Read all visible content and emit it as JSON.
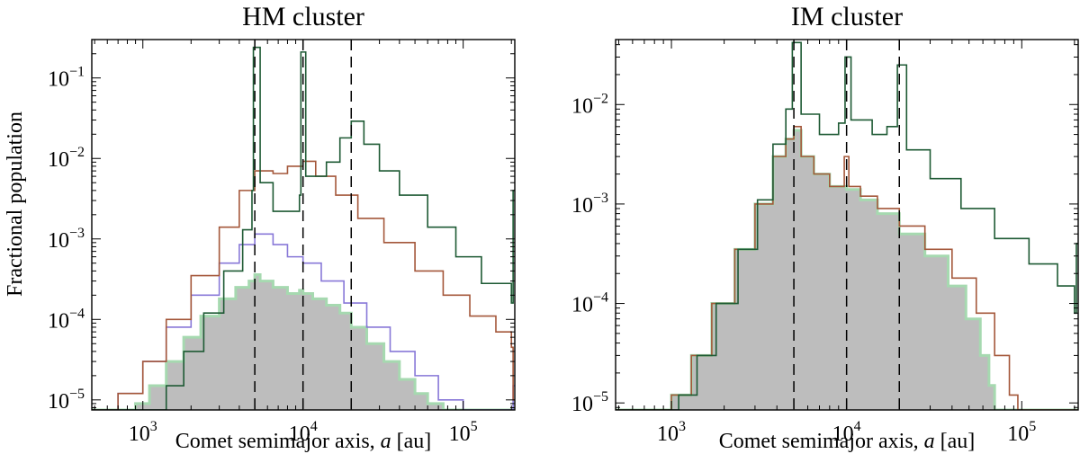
{
  "figure": {
    "ylabel": "Fractional population"
  },
  "chart_data": [
    {
      "type": "area",
      "title": "HM cluster",
      "xlabel": "Comet semimajor axis, a [au]",
      "xlabel_parts": [
        "Comet semimajor axis, ",
        "a",
        " [au]"
      ],
      "ylabel": "Fractional population",
      "xscale": "log",
      "yscale": "log",
      "xlim": [
        480,
        210000
      ],
      "ylim": [
        7.5e-06,
        0.3
      ],
      "xticks": [
        {
          "value": 1000,
          "base": "10",
          "exp": "3"
        },
        {
          "value": 10000,
          "base": "10",
          "exp": "4"
        },
        {
          "value": 100000,
          "base": "10",
          "exp": "5"
        }
      ],
      "yticks": [
        {
          "value": 1e-05,
          "base": "10",
          "exp": "−5"
        },
        {
          "value": 0.0001,
          "base": "10",
          "exp": "−4"
        },
        {
          "value": 0.001,
          "base": "10",
          "exp": "−3"
        },
        {
          "value": 0.01,
          "base": "10",
          "exp": "−2"
        },
        {
          "value": 0.1,
          "base": "10",
          "exp": "−1"
        }
      ],
      "vlines": [
        5000,
        10000,
        20000
      ],
      "series": [
        {
          "style": "filled",
          "color": "#bdbdbd",
          "edge": "#a6d9b0",
          "points": [
            [
              480,
              7.5e-06
            ],
            [
              700,
              7.5e-06
            ],
            [
              900,
              9e-06
            ],
            [
              1100,
              1.5e-05
            ],
            [
              1400,
              3e-05
            ],
            [
              1800,
              6e-05
            ],
            [
              2300,
              0.00011
            ],
            [
              3000,
              0.00018
            ],
            [
              3800,
              0.00025
            ],
            [
              4600,
              0.0003
            ],
            [
              5000,
              0.00036
            ],
            [
              5400,
              0.0003
            ],
            [
              6500,
              0.00025
            ],
            [
              8000,
              0.00021
            ],
            [
              9500,
              0.00023
            ],
            [
              10000,
              0.00021
            ],
            [
              11500,
              0.00018
            ],
            [
              14000,
              0.00015
            ],
            [
              17000,
              0.00012
            ],
            [
              20000,
              8e-05
            ],
            [
              25000,
              5e-05
            ],
            [
              32000,
              3e-05
            ],
            [
              40000,
              1.8e-05
            ],
            [
              50000,
              1.2e-05
            ],
            [
              60000,
              9e-06
            ],
            [
              75000,
              7.5e-06
            ],
            [
              210000,
              7.5e-06
            ]
          ]
        },
        {
          "style": "step",
          "color": "#8878d8",
          "points": [
            [
              480,
              7.5e-06
            ],
            [
              700,
              1.2e-05
            ],
            [
              1000,
              3e-05
            ],
            [
              1400,
              8e-05
            ],
            [
              2000,
              0.0002
            ],
            [
              3000,
              0.0005
            ],
            [
              4000,
              0.00085
            ],
            [
              5000,
              0.00115
            ],
            [
              6500,
              0.00085
            ],
            [
              8000,
              0.0006
            ],
            [
              10000,
              0.0005
            ],
            [
              13000,
              0.0003
            ],
            [
              18000,
              0.00016
            ],
            [
              25000,
              8e-05
            ],
            [
              35000,
              4e-05
            ],
            [
              50000,
              2e-05
            ],
            [
              70000,
              1e-05
            ],
            [
              100000,
              7.5e-06
            ],
            [
              180000,
              7.5e-06
            ],
            [
              205000,
              1.5e-05
            ],
            [
              210000,
              1.5e-05
            ]
          ]
        },
        {
          "style": "step",
          "color": "#a4573a",
          "points": [
            [
              480,
              7.5e-06
            ],
            [
              700,
              1.2e-05
            ],
            [
              1000,
              3e-05
            ],
            [
              1400,
              0.0001
            ],
            [
              2000,
              0.00035
            ],
            [
              3000,
              0.0014
            ],
            [
              4000,
              0.004
            ],
            [
              5000,
              0.007
            ],
            [
              6500,
              0.0065
            ],
            [
              8000,
              0.008
            ],
            [
              10000,
              0.0092
            ],
            [
              12000,
              0.006
            ],
            [
              16000,
              0.0035
            ],
            [
              22000,
              0.0018
            ],
            [
              32000,
              0.0009
            ],
            [
              50000,
              0.0004
            ],
            [
              75000,
              0.0002
            ],
            [
              110000,
              0.00011
            ],
            [
              160000,
              7e-05
            ],
            [
              200000,
              4.5e-05
            ],
            [
              205000,
              1e-05
            ],
            [
              210000,
              1e-05
            ]
          ]
        },
        {
          "style": "step",
          "color": "#1e5a34",
          "points": [
            [
              480,
              7.5e-06
            ],
            [
              1100,
              7.5e-06
            ],
            [
              1400,
              1.5e-05
            ],
            [
              1800,
              4e-05
            ],
            [
              2400,
              0.00012
            ],
            [
              3200,
              0.0004
            ],
            [
              4200,
              0.0013
            ],
            [
              4800,
              0.004
            ],
            [
              4900,
              0.24
            ],
            [
              5300,
              0.24
            ],
            [
              5400,
              0.005
            ],
            [
              6500,
              0.0022
            ],
            [
              8000,
              0.0022
            ],
            [
              9500,
              0.0035
            ],
            [
              9700,
              0.21
            ],
            [
              10200,
              0.21
            ],
            [
              10400,
              0.006
            ],
            [
              12000,
              0.006
            ],
            [
              14000,
              0.009
            ],
            [
              17000,
              0.018
            ],
            [
              20000,
              0.029
            ],
            [
              24000,
              0.015
            ],
            [
              30000,
              0.007
            ],
            [
              40000,
              0.0035
            ],
            [
              60000,
              0.0014
            ],
            [
              90000,
              0.0006
            ],
            [
              130000,
              0.00028
            ],
            [
              200000,
              0.00016
            ],
            [
              205000,
              0.004
            ],
            [
              210000,
              0.004
            ]
          ]
        }
      ]
    },
    {
      "type": "area",
      "title": "IM cluster",
      "xlabel": "Comet semimajor axis, a [au]",
      "xlabel_parts": [
        "Comet semimajor axis, ",
        "a",
        " [au]"
      ],
      "ylabel": "",
      "xscale": "log",
      "yscale": "log",
      "xlim": [
        480,
        210000
      ],
      "ylim": [
        8.5e-06,
        0.045
      ],
      "xticks": [
        {
          "value": 1000,
          "base": "10",
          "exp": "3"
        },
        {
          "value": 10000,
          "base": "10",
          "exp": "4"
        },
        {
          "value": 100000,
          "base": "10",
          "exp": "5"
        }
      ],
      "yticks": [
        {
          "value": 1e-05,
          "base": "10",
          "exp": "−5"
        },
        {
          "value": 0.0001,
          "base": "10",
          "exp": "−4"
        },
        {
          "value": 0.001,
          "base": "10",
          "exp": "−3"
        },
        {
          "value": 0.01,
          "base": "10",
          "exp": "−2"
        }
      ],
      "vlines": [
        5000,
        10000,
        20000
      ],
      "series": [
        {
          "style": "filled",
          "color": "#bdbdbd",
          "edge": "#a6d9b0",
          "points": [
            [
              480,
              8.5e-06
            ],
            [
              900,
              8.5e-06
            ],
            [
              1000,
              1.2e-05
            ],
            [
              1300,
              3e-05
            ],
            [
              1700,
              0.0001
            ],
            [
              2300,
              0.00035
            ],
            [
              3000,
              0.001
            ],
            [
              3800,
              0.003
            ],
            [
              4500,
              0.0045
            ],
            [
              5000,
              0.0055
            ],
            [
              5500,
              0.003
            ],
            [
              6500,
              0.002
            ],
            [
              8000,
              0.0015
            ],
            [
              10000,
              0.0014
            ],
            [
              12000,
              0.0011
            ],
            [
              15000,
              0.0008
            ],
            [
              20000,
              0.0005
            ],
            [
              28000,
              0.0003
            ],
            [
              38000,
              0.00015
            ],
            [
              48000,
              7e-05
            ],
            [
              58000,
              3e-05
            ],
            [
              65000,
              1.5e-05
            ],
            [
              70000,
              8.5e-06
            ],
            [
              210000,
              8.5e-06
            ]
          ]
        },
        {
          "style": "step",
          "color": "#a4573a",
          "points": [
            [
              480,
              8.5e-06
            ],
            [
              900,
              8.5e-06
            ],
            [
              1000,
              1.2e-05
            ],
            [
              1300,
              3e-05
            ],
            [
              1700,
              0.0001
            ],
            [
              2300,
              0.00035
            ],
            [
              3000,
              0.001
            ],
            [
              3800,
              0.003
            ],
            [
              4500,
              0.0045
            ],
            [
              5000,
              0.006
            ],
            [
              5500,
              0.003
            ],
            [
              6500,
              0.002
            ],
            [
              8000,
              0.0015
            ],
            [
              9700,
              0.003
            ],
            [
              10300,
              0.0015
            ],
            [
              12000,
              0.0012
            ],
            [
              15000,
              0.0009
            ],
            [
              20000,
              0.0006
            ],
            [
              28000,
              0.00035
            ],
            [
              40000,
              0.00018
            ],
            [
              55000,
              8e-05
            ],
            [
              70000,
              3e-05
            ],
            [
              85000,
              1.2e-05
            ],
            [
              95000,
              8.5e-06
            ],
            [
              210000,
              8.5e-06
            ]
          ]
        },
        {
          "style": "step",
          "color": "#1e5a34",
          "points": [
            [
              480,
              8.5e-06
            ],
            [
              950,
              8.5e-06
            ],
            [
              1100,
              1.2e-05
            ],
            [
              1400,
              3e-05
            ],
            [
              1800,
              0.0001
            ],
            [
              2400,
              0.00035
            ],
            [
              3100,
              0.0011
            ],
            [
              3800,
              0.004
            ],
            [
              4500,
              0.009
            ],
            [
              4900,
              0.042
            ],
            [
              5300,
              0.042
            ],
            [
              5500,
              0.008
            ],
            [
              7000,
              0.005
            ],
            [
              9000,
              0.0065
            ],
            [
              9800,
              0.03
            ],
            [
              10300,
              0.03
            ],
            [
              10600,
              0.007
            ],
            [
              14000,
              0.005
            ],
            [
              17000,
              0.006
            ],
            [
              19500,
              0.025
            ],
            [
              21000,
              0.025
            ],
            [
              22000,
              0.0035
            ],
            [
              30000,
              0.0018
            ],
            [
              45000,
              0.0009
            ],
            [
              70000,
              0.00045
            ],
            [
              110000,
              0.00025
            ],
            [
              160000,
              0.00015
            ],
            [
              200000,
              8e-05
            ],
            [
              205000,
              0.0004
            ],
            [
              210000,
              0.0004
            ]
          ]
        }
      ]
    }
  ]
}
